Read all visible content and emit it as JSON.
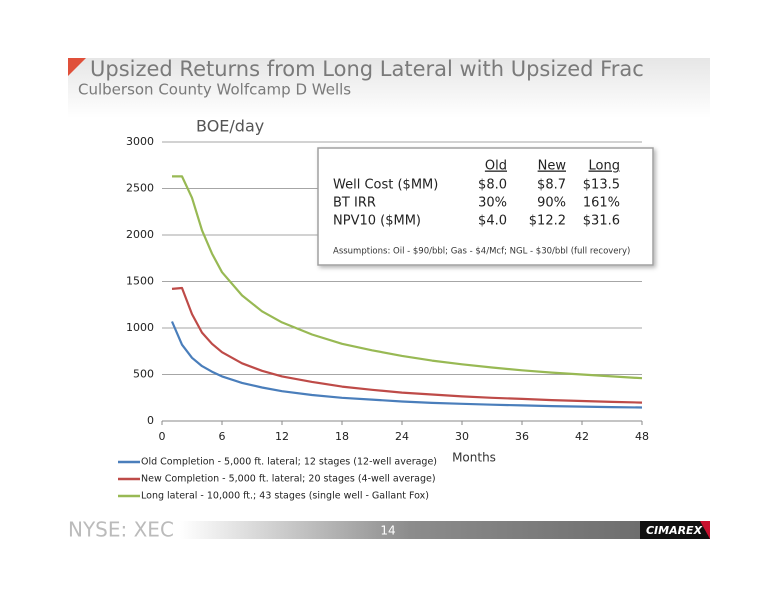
{
  "slide": {
    "title": "Upsized Returns from Long Lateral with Upsized Frac",
    "subtitle": "Culberson County Wolfcamp D Wells",
    "footer": "NYSE: XEC",
    "page": "14",
    "logo": "CIMAREX"
  },
  "summary_box": {
    "columns": [
      "Old",
      "New",
      "Long"
    ],
    "rows": [
      {
        "label": "Well Cost ($MM)",
        "cells": [
          "$8.0",
          "$8.7",
          "$13.5"
        ]
      },
      {
        "label": "BT IRR",
        "cells": [
          "30%",
          "90%",
          "161%"
        ]
      },
      {
        "label": "NPV10 ($MM)",
        "cells": [
          "$4.0",
          "$12.2",
          "$31.6"
        ]
      }
    ],
    "note": "Assumptions:  Oil - $90/bbl; Gas - $4/Mcf; NGL - $30/bbl (full recovery)"
  },
  "chart_data": {
    "type": "line",
    "ylabel": "BOE/day",
    "xlabel": "Months",
    "x": [
      1,
      2,
      3,
      4,
      5,
      6,
      8,
      10,
      12,
      15,
      18,
      21,
      24,
      27,
      30,
      33,
      36,
      39,
      42,
      45,
      48
    ],
    "series": [
      {
        "name": "Old Completion - 5,000 ft. lateral; 12 stages (12-well average)",
        "color": "#4a7ebb",
        "values": [
          1070,
          820,
          680,
          590,
          530,
          480,
          410,
          360,
          320,
          280,
          250,
          230,
          210,
          195,
          185,
          175,
          168,
          160,
          155,
          150,
          145
        ]
      },
      {
        "name": "New Completion - 5,000 ft. lateral; 20 stages (4-well average)",
        "color": "#be4b48",
        "values": [
          1420,
          1430,
          1150,
          950,
          830,
          740,
          620,
          540,
          480,
          420,
          370,
          335,
          305,
          285,
          265,
          250,
          238,
          225,
          215,
          205,
          198
        ]
      },
      {
        "name": "Long lateral - 10,000 ft.; 43 stages (single well - Gallant Fox)",
        "color": "#98b954",
        "values": [
          2630,
          2630,
          2400,
          2050,
          1800,
          1600,
          1350,
          1180,
          1060,
          930,
          830,
          760,
          700,
          650,
          610,
          575,
          545,
          520,
          500,
          480,
          460
        ]
      }
    ],
    "xlim": [
      0,
      48
    ],
    "xticks": [
      0,
      6,
      12,
      18,
      24,
      30,
      36,
      42,
      48
    ],
    "ylim": [
      0,
      3000
    ],
    "yticks": [
      0,
      500,
      1000,
      1500,
      2000,
      2500,
      3000
    ],
    "grid": true
  }
}
